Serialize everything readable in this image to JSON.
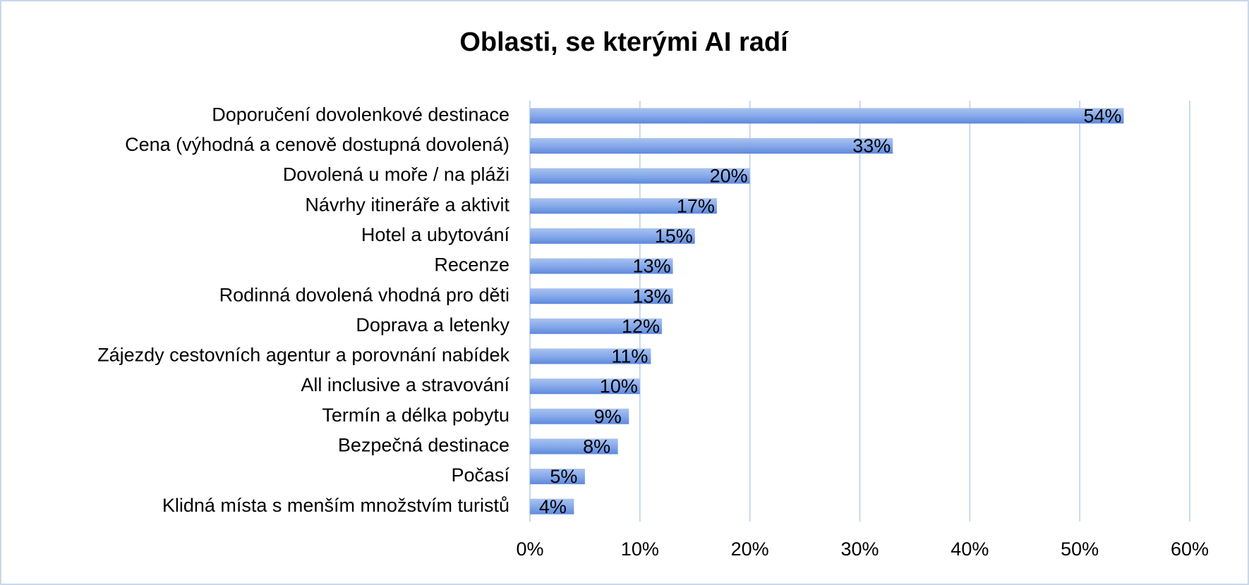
{
  "chart_data": {
    "type": "bar",
    "orientation": "horizontal",
    "title": "Oblasti, se kterými AI radí",
    "categories": [
      "Doporučení dovolenkové destinace",
      "Cena (výhodná a cenově dostupná dovolená)",
      "Dovolená u moře / na pláži",
      "Návrhy itineráře a aktivit",
      "Hotel a ubytování",
      "Recenze",
      "Rodinná dovolená vhodná pro děti",
      "Doprava a letenky",
      "Zájezdy cestovních agentur a porovnání nabídek",
      "All inclusive a stravování",
      "Termín a délka pobytu",
      "Bezpečná destinace",
      "Počasí",
      "Klidná místa s menším množstvím turistů"
    ],
    "values": [
      54,
      33,
      20,
      17,
      15,
      13,
      13,
      12,
      11,
      10,
      9,
      8,
      5,
      4
    ],
    "value_labels": [
      "54%",
      "33%",
      "20%",
      "17%",
      "15%",
      "13%",
      "13%",
      "12%",
      "11%",
      "10%",
      "9%",
      "8%",
      "5%",
      "4%"
    ],
    "color": "#7ea3e8",
    "xlim": [
      0,
      60
    ],
    "xticks": [
      {
        "value": 0,
        "label": "0%"
      },
      {
        "value": 10,
        "label": "10%"
      },
      {
        "value": 20,
        "label": "20%"
      },
      {
        "value": 30,
        "label": "30%"
      },
      {
        "value": 40,
        "label": "40%"
      },
      {
        "value": 50,
        "label": "50%"
      },
      {
        "value": 60,
        "label": "60%"
      }
    ],
    "grid": true
  }
}
